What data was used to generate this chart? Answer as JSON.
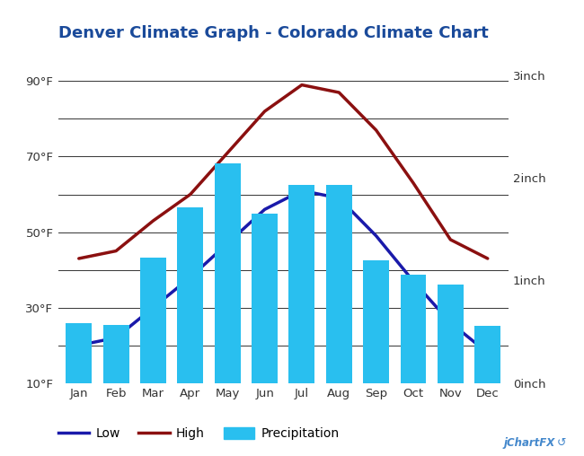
{
  "title": "Denver Climate Graph - Colorado Climate Chart",
  "months": [
    "Jan",
    "Feb",
    "Mar",
    "Apr",
    "May",
    "Jun",
    "Jul",
    "Aug",
    "Sep",
    "Oct",
    "Nov",
    "Dec"
  ],
  "temp_low": [
    20,
    22,
    30,
    38,
    47,
    56,
    61,
    59,
    49,
    37,
    26,
    18
  ],
  "temp_high": [
    43,
    45,
    53,
    60,
    71,
    82,
    89,
    87,
    77,
    63,
    48,
    43
  ],
  "precipitation_inch": [
    0.58,
    0.57,
    1.22,
    1.71,
    2.14,
    1.65,
    1.93,
    1.93,
    1.2,
    1.06,
    0.96,
    0.56
  ],
  "bar_color": "#29BFEF",
  "line_low_color": "#1a1aaa",
  "line_high_color": "#8B1010",
  "temp_ylim": [
    10,
    97
  ],
  "temp_yticks": [
    10,
    20,
    30,
    40,
    50,
    60,
    70,
    80,
    90
  ],
  "temp_ytick_labels": [
    "10°F",
    "",
    "30°F",
    "",
    "50°F",
    "",
    "70°F",
    "",
    "90°F"
  ],
  "precip_ylim": [
    0,
    3.2
  ],
  "precip_yticks": [
    0,
    0.5,
    1.0,
    1.5,
    2.0,
    2.5,
    3.0
  ],
  "precip_ytick_labels": [
    "0inch",
    "",
    "1inch",
    "",
    "2inch",
    "",
    "3inch"
  ],
  "background_color": "#ffffff",
  "grid_color": "#333333",
  "title_color": "#1a4a9a",
  "title_fontsize": 13,
  "legend_fontsize": 10
}
